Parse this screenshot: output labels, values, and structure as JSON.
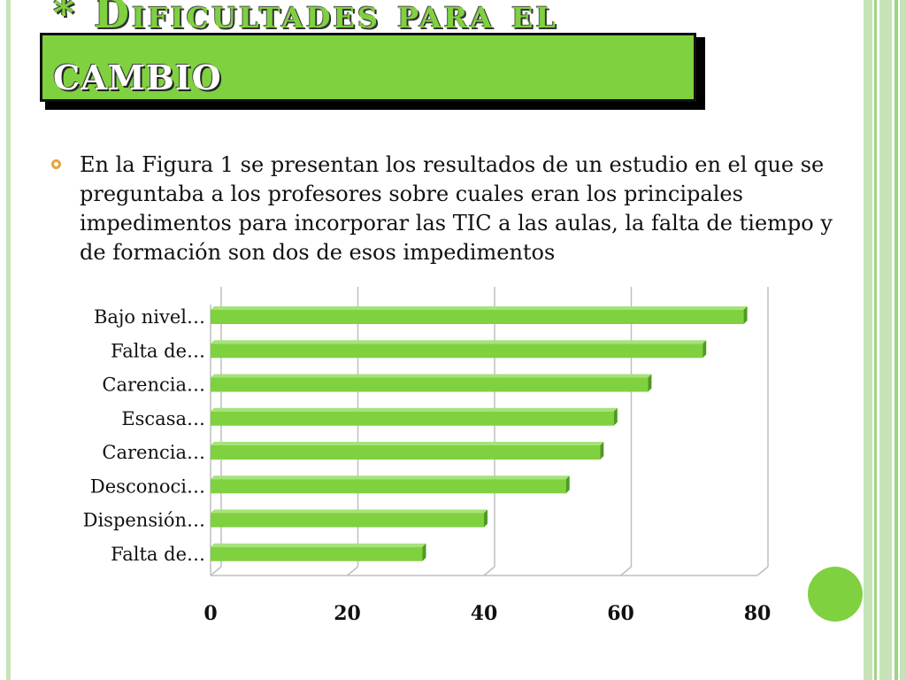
{
  "slide": {
    "title_line1": "* Dificultades para el",
    "title_line2": "CAMBIO",
    "bullet_text": "En la Figura 1 se presentan los resultados de un estudio en el que se preguntaba a los profesores sobre cuales eran los principales impedimentos para incorporar las TIC a las aulas, la falta de tiempo y de formación son dos de esos impedimentos"
  },
  "colors": {
    "accent": "#7fd13f",
    "bullet": "#e8a33b"
  },
  "chart_data": {
    "type": "bar",
    "orientation": "horizontal",
    "categories": [
      "Bajo nivel…",
      "Falta de…",
      "Carencia…",
      "Escasa…",
      "Carencia…",
      "Desconoci…",
      "Dispensión…",
      "Falta de…"
    ],
    "values": [
      78,
      72,
      64,
      59,
      57,
      52,
      40,
      31
    ],
    "x_ticks": [
      "0",
      "20",
      "40",
      "60",
      "80"
    ],
    "xlim": [
      0,
      80
    ],
    "grid": true,
    "legend": "none",
    "title": "",
    "xlabel": "",
    "ylabel": ""
  }
}
